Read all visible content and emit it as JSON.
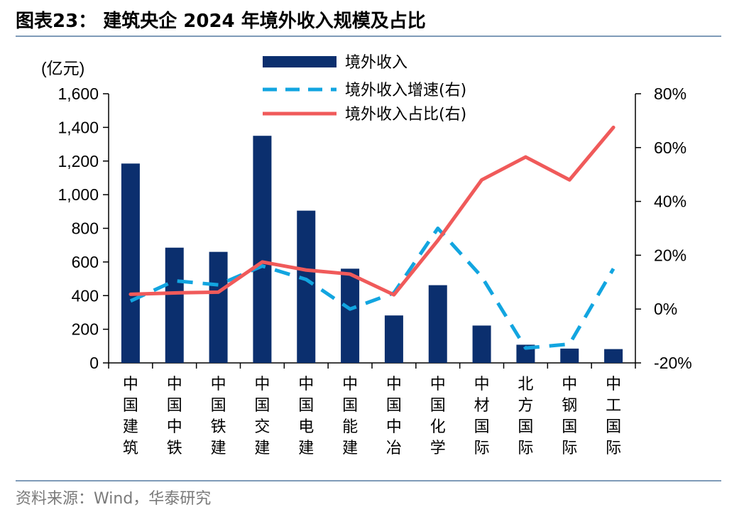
{
  "header": {
    "title": "图表23：  建筑央企 2024 年境外收入规模及占比"
  },
  "footer": {
    "source": "资料来源：Wind，华泰研究"
  },
  "chart_data": {
    "type": "bar",
    "categories": [
      "中国建筑",
      "中国中铁",
      "中国铁建",
      "中国交建",
      "中国电建",
      "中国能建",
      "中国中冶",
      "中国化学",
      "中材国际",
      "北方国际",
      "中钢国际",
      "中工国际"
    ],
    "ylabel": "(亿元)",
    "ylim": [
      0,
      1600
    ],
    "y_ticks": [
      0,
      200,
      400,
      600,
      800,
      1000,
      1200,
      1400,
      1600
    ],
    "y_tick_labels": [
      "0",
      "200",
      "400",
      "600",
      "800",
      "1,000",
      "1,200",
      "1,400",
      "1,600"
    ],
    "y2lim": [
      -20,
      80
    ],
    "y2_ticks": [
      -20,
      0,
      20,
      40,
      60,
      80
    ],
    "y2_tick_labels": [
      "-20%",
      "0%",
      "20%",
      "40%",
      "60%",
      "80%"
    ],
    "legend_position": "top-center",
    "grid": false,
    "series": [
      {
        "name": "境外收入",
        "kind": "bar",
        "axis": "left",
        "color": "#0b2f6e",
        "values": [
          1185,
          685,
          660,
          1350,
          905,
          560,
          282,
          462,
          222,
          108,
          85,
          82
        ]
      },
      {
        "name": "境外收入增速(右)",
        "kind": "dashed-line",
        "axis": "right",
        "color": "#12a5e0",
        "values": [
          3,
          10.5,
          9,
          16,
          11,
          0,
          6,
          30,
          12,
          -14.5,
          -13,
          15
        ]
      },
      {
        "name": "境外收入占比(右)",
        "kind": "line",
        "axis": "right",
        "color": "#f05a5a",
        "values": [
          5.5,
          6,
          6.3,
          17.5,
          14.5,
          13,
          5.3,
          25.5,
          48,
          56.5,
          48,
          67.5
        ]
      }
    ]
  }
}
